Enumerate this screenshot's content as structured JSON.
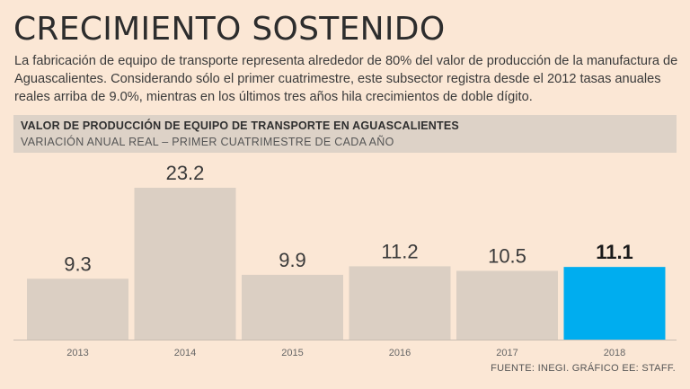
{
  "header": {
    "title": "CRECIMIENTO SOSTENIDO",
    "description": "La fabricación de equipo de transporte representa alrededor de 80% del valor de producción de la manufactura de Aguascalientes. Considerando sólo el primer cuatrimestre, este subsector registra desde el 2012 tasas anuales reales arriba de 9.0%, mientras en los últimos tres años hila crecimientos de doble dígito."
  },
  "colors": {
    "background": "#fbe7d5",
    "bar": "#dbcfc3",
    "highlight": "#00adef"
  },
  "chart_data": {
    "type": "bar",
    "title": "VALOR DE PRODUCCIÓN DE EQUIPO DE TRANSPORTE EN AGUASCALIENTES",
    "subtitle": "VARIACIÓN ANUAL REAL – PRIMER CUATRIMESTRE DE CADA AÑO",
    "categories": [
      "2013",
      "2014",
      "2015",
      "2016",
      "2017",
      "2018"
    ],
    "values": [
      9.3,
      23.2,
      9.9,
      11.2,
      10.5,
      11.1
    ],
    "value_labels": [
      "9.3",
      "23.2",
      "9.9",
      "11.2",
      "10.5",
      "11.1"
    ],
    "highlight_index": 5,
    "xlabel": "",
    "ylabel": "",
    "ylim": [
      0,
      23.2
    ],
    "grid": false
  },
  "footer": {
    "source": "FUENTE: INEGI. GRÁFICO EE: STAFF."
  }
}
